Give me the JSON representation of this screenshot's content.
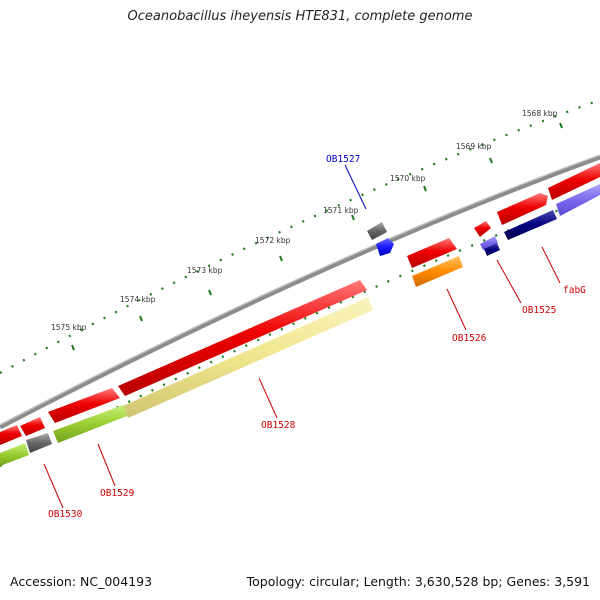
{
  "title": "Oceanobacillus iheyensis HTE831, complete genome",
  "footer": {
    "accession": "Accession: NC_004193",
    "stats": "Topology: circular; Length: 3,630,528 bp; Genes: 3,591"
  },
  "colors": {
    "backbone": "#8c8c8c",
    "tick": "#1c7a1c",
    "label_red": "#cc0000",
    "label_blue": "#0000cc",
    "gene_red": "#ee0000",
    "gene_gray": "#666666",
    "gene_blue": "#1a1aff",
    "gene_orange": "#ff8c00",
    "gene_navy": "#000080",
    "gene_purple": "#7b68ee",
    "gene_khaki": "#f0e68c",
    "gene_lime": "#9acd32"
  },
  "scale_labels": [
    "1568 kbp",
    "1569 kbp",
    "1570 kbp",
    "1571 kbp",
    "1572 kbp",
    "1573 kbp",
    "1574 kbp",
    "1575 kbp"
  ],
  "gene_labels": [
    {
      "id": "fabG",
      "color": "red"
    },
    {
      "id": "OB1525",
      "color": "red"
    },
    {
      "id": "OB1526",
      "color": "red"
    },
    {
      "id": "OB1527",
      "color": "blue"
    },
    {
      "id": "OB1528",
      "color": "red"
    },
    {
      "id": "OB1529",
      "color": "red"
    },
    {
      "id": "OB1530",
      "color": "red"
    }
  ]
}
